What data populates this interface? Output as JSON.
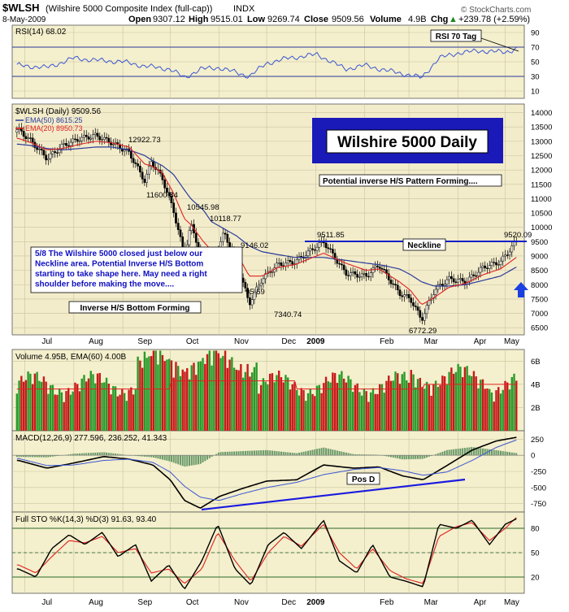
{
  "header": {
    "symbol": "$WLSH",
    "name": "(Wilshire 5000 Composite Index (full-cap))",
    "exchange": "INDX",
    "date": "8-May-2009",
    "open_label": "Open",
    "open": "9307.12",
    "high_label": "High",
    "high": "9515.01",
    "low_label": "Low",
    "low": "9269.74",
    "close_label": "Close",
    "close": "9509.56",
    "volume_label": "Volume",
    "volume": "4.9B",
    "chg_label": "Chg",
    "chg": "+239.78 (+2.59%)",
    "chg_arrow": "▲",
    "watermark": "© StockCharts.com"
  },
  "colors": {
    "panel_fill": "#f4efcc",
    "price_fill": "#f3eccb",
    "grid": "#c9c3a0",
    "rsi_line": "#3a56d4",
    "ema50": "#2a3a9a",
    "ema20": "#e02020",
    "up_bar": "#2a9a2a",
    "down_bar": "#c81a1a",
    "neckline": "#1020c8",
    "title_box": "#1a1ab8",
    "sto_k": "#000000",
    "sto_d": "#e02020"
  },
  "months": [
    "Jul",
    "Aug",
    "Sep",
    "Oct",
    "Nov",
    "Dec",
    "2009",
    "Feb",
    "Mar",
    "Apr",
    "May"
  ],
  "chart_data": [
    {
      "id": "rsi",
      "type": "line",
      "title": "RSI(14) 68.02",
      "yticks": [
        10,
        30,
        50,
        70,
        90
      ],
      "ylim": [
        0,
        100
      ],
      "hlines": [
        30,
        70
      ],
      "annotation": "RSI 70 Tag",
      "x": [
        "2008-06-27",
        "2008-07-15",
        "2008-08-01",
        "2008-08-15",
        "2008-09-01",
        "2008-09-15",
        "2008-10-01",
        "2008-10-10",
        "2008-10-20",
        "2008-11-01",
        "2008-11-20",
        "2008-12-01",
        "2008-12-15",
        "2009-01-02",
        "2009-01-20",
        "2009-02-01",
        "2009-02-15",
        "2009-03-01",
        "2009-03-09",
        "2009-03-20",
        "2009-04-01",
        "2009-04-15",
        "2009-05-01",
        "2009-05-08"
      ],
      "values": [
        45,
        42,
        55,
        52,
        50,
        44,
        40,
        28,
        40,
        42,
        30,
        48,
        55,
        60,
        40,
        45,
        38,
        32,
        28,
        55,
        62,
        65,
        63,
        68
      ]
    },
    {
      "id": "price",
      "type": "line",
      "title": "$WLSH (Daily) 9509.56",
      "legend": [
        "EMA(50) 8615.25",
        "EMA(20) 8950.73"
      ],
      "yticks": [
        6500,
        7000,
        7500,
        8000,
        8500,
        9000,
        9500,
        10000,
        10500,
        11000,
        11500,
        12000,
        12500,
        13000,
        13500,
        14000
      ],
      "ylim": [
        6250,
        14300
      ],
      "neckline_value": 9510,
      "price_labels": [
        "12922.73",
        "11600.84",
        "10545.98",
        "10118.77",
        "9146.02",
        "95.59",
        "7340.74",
        "9511.85",
        "6772.29",
        "9520.09"
      ],
      "title_box": "Wilshire 5000 Daily",
      "pattern_label": "Potential inverse H/S Pattern Forming....",
      "neckline_label": "Neckline",
      "note": "5/8  The Wilshire 5000 closed just below our Neckline area.  Potential Inverse H/S Bottom starting to take shape here.  May need a right shoulder before making the move....",
      "bottom_label": "Inverse H/S Bottom Forming",
      "x": [
        "2008-06-27",
        "2008-07-05",
        "2008-07-15",
        "2008-07-25",
        "2008-08-05",
        "2008-08-15",
        "2008-08-25",
        "2008-09-05",
        "2008-09-15",
        "2008-09-19",
        "2008-09-26",
        "2008-10-03",
        "2008-10-10",
        "2008-10-14",
        "2008-10-22",
        "2008-10-27",
        "2008-11-04",
        "2008-11-12",
        "2008-11-20",
        "2008-11-28",
        "2008-12-08",
        "2008-12-19",
        "2009-01-06",
        "2009-01-20",
        "2009-02-02",
        "2009-02-10",
        "2009-02-23",
        "2009-03-02",
        "2009-03-09",
        "2009-03-17",
        "2009-03-26",
        "2009-04-06",
        "2009-04-17",
        "2009-04-28",
        "2009-05-08"
      ],
      "values": [
        13400,
        13000,
        12400,
        12850,
        13100,
        13200,
        12950,
        12600,
        11600,
        12300,
        11700,
        10600,
        9000,
        10100,
        8800,
        8700,
        9800,
        8800,
        7340,
        8200,
        8700,
        8800,
        9500,
        8400,
        8300,
        8700,
        7700,
        7500,
        6780,
        7800,
        8200,
        8100,
        8600,
        8800,
        9510
      ],
      "ema50": [
        12900,
        12850,
        12750,
        12700,
        12750,
        12800,
        12800,
        12700,
        12500,
        12350,
        12150,
        11850,
        11300,
        11000,
        10600,
        10200,
        9950,
        9700,
        9350,
        9150,
        9050,
        8950,
        8950,
        8850,
        8750,
        8700,
        8550,
        8350,
        8100,
        7950,
        7950,
        8000,
        8150,
        8300,
        8615
      ],
      "ema20": [
        13100,
        12950,
        12700,
        12750,
        12900,
        13000,
        12950,
        12800,
        12200,
        12150,
        11900,
        11200,
        10300,
        10100,
        9500,
        9200,
        9300,
        9100,
        8300,
        8300,
        8600,
        8700,
        9100,
        8750,
        8500,
        8550,
        8100,
        7800,
        7300,
        7550,
        7900,
        8050,
        8350,
        8550,
        8950
      ]
    },
    {
      "id": "volume",
      "type": "bar",
      "title": "Volume 4.95B, EMA(60) 4.00B",
      "yticks": [
        2,
        4,
        6
      ],
      "ytick_labels": [
        "2B",
        "4B",
        "6B"
      ],
      "ylim": [
        0,
        7
      ],
      "unit": "B",
      "ema_level": 4.0
    },
    {
      "id": "macd",
      "type": "line",
      "title": "MACD(12,26,9) 277.596, 236.252, 41.343",
      "yticks": [
        -750,
        -500,
        -250,
        0,
        250
      ],
      "ylim": [
        -880,
        380
      ],
      "annotation": "Pos D",
      "x": [
        "2008-06-27",
        "2008-07-15",
        "2008-08-01",
        "2008-08-20",
        "2008-09-05",
        "2008-09-20",
        "2008-10-01",
        "2008-10-10",
        "2008-10-20",
        "2008-11-01",
        "2008-11-15",
        "2008-12-01",
        "2008-12-20",
        "2009-01-06",
        "2009-01-25",
        "2009-02-10",
        "2009-02-25",
        "2009-03-10",
        "2009-03-25",
        "2009-04-10",
        "2009-04-25",
        "2009-05-08"
      ],
      "values": [
        -80,
        -200,
        -120,
        -20,
        -60,
        -150,
        -380,
        -700,
        -820,
        -640,
        -520,
        -400,
        -380,
        -150,
        -200,
        -180,
        -320,
        -380,
        -160,
        80,
        220,
        278
      ],
      "signal": [
        -50,
        -160,
        -150,
        -80,
        -60,
        -110,
        -260,
        -480,
        -650,
        -700,
        -600,
        -500,
        -420,
        -300,
        -220,
        -190,
        -240,
        -310,
        -260,
        -80,
        120,
        236
      ]
    },
    {
      "id": "sto",
      "type": "line",
      "title": "Full STO %K(14,3) %D(3) 91.63, 93.40",
      "yticks": [
        20,
        50,
        80
      ],
      "ylim": [
        0,
        100
      ],
      "hlines": [
        20,
        50,
        80
      ],
      "x": [
        "2008-06-27",
        "2008-07-08",
        "2008-07-18",
        "2008-07-29",
        "2008-08-08",
        "2008-08-19",
        "2008-08-29",
        "2008-09-09",
        "2008-09-19",
        "2008-09-30",
        "2008-10-10",
        "2008-10-21",
        "2008-10-31",
        "2008-11-11",
        "2008-11-21",
        "2008-12-02",
        "2008-12-12",
        "2008-12-23",
        "2009-01-06",
        "2009-01-16",
        "2009-01-27",
        "2009-02-06",
        "2009-02-17",
        "2009-02-27",
        "2009-03-10",
        "2009-03-20",
        "2009-03-31",
        "2009-04-10",
        "2009-04-21",
        "2009-05-01",
        "2009-05-08"
      ],
      "values": [
        30,
        20,
        55,
        72,
        60,
        75,
        45,
        60,
        15,
        35,
        5,
        40,
        85,
        30,
        10,
        60,
        75,
        55,
        90,
        40,
        25,
        60,
        20,
        15,
        8,
        85,
        80,
        90,
        60,
        85,
        91.63
      ],
      "signal": [
        35,
        25,
        45,
        65,
        62,
        70,
        50,
        55,
        25,
        30,
        12,
        30,
        75,
        40,
        15,
        50,
        70,
        58,
        85,
        50,
        30,
        55,
        28,
        18,
        12,
        70,
        82,
        87,
        65,
        80,
        93.4
      ]
    }
  ]
}
